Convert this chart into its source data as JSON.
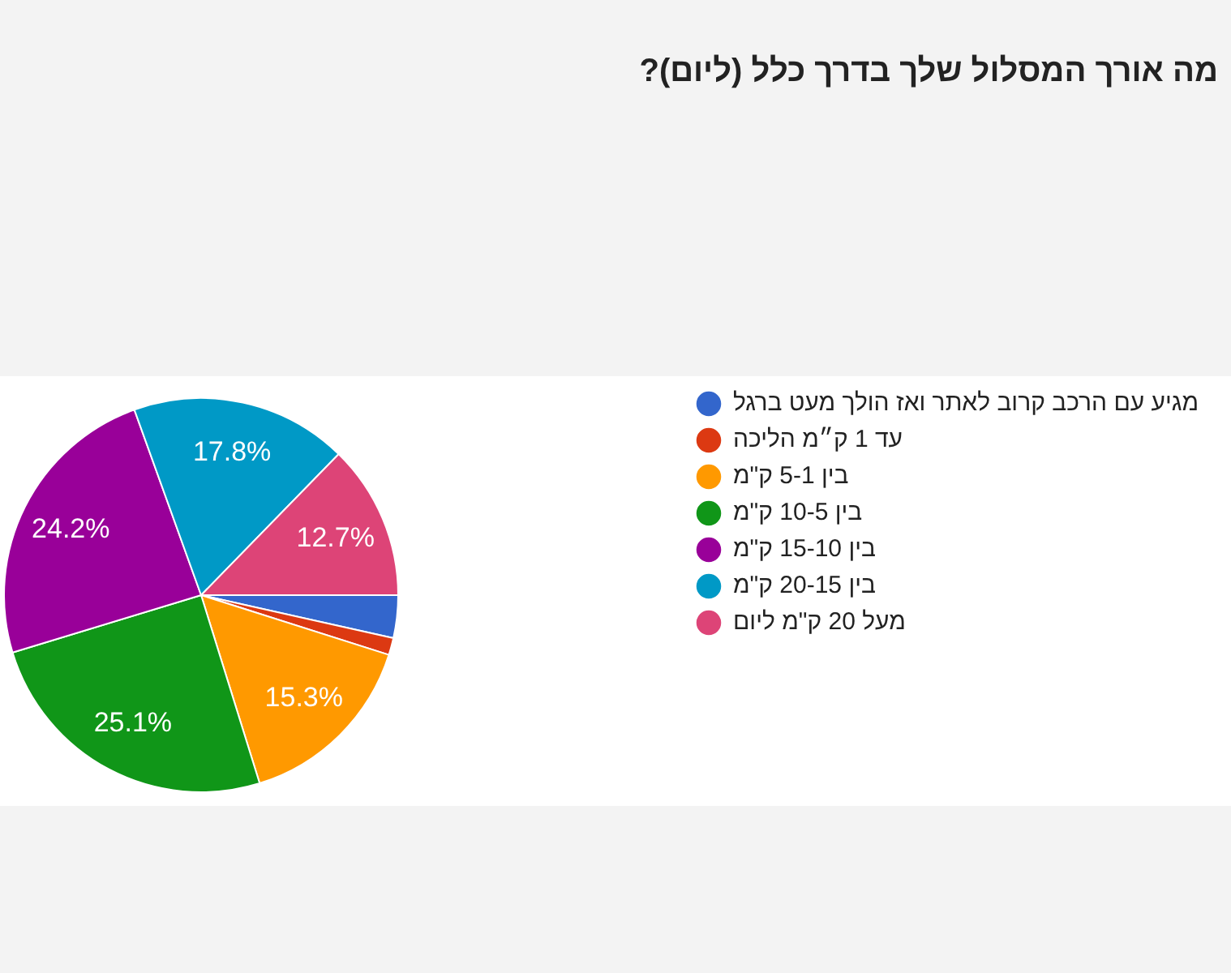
{
  "chart_data": {
    "type": "pie",
    "title": "מה אורך המסלול שלך בדרך כלל (ליום)?",
    "categories": [
      "מגיע עם הרכב קרוב לאתר ואז הולך מעט ברגל",
      "עד 1 ק״מ הליכה",
      "בין 5-1 ק\"מ",
      "בין 10-5 ק\"מ",
      "בין 15-10 ק\"מ",
      "בין 20-15 ק\"מ",
      "מעל 20 ק\"מ ליום"
    ],
    "values": [
      3.5,
      1.4,
      15.3,
      25.1,
      24.2,
      17.8,
      12.7
    ],
    "colors": [
      "#3366cc",
      "#dc3912",
      "#ff9900",
      "#109618",
      "#990099",
      "#0099c6",
      "#dd4477"
    ],
    "value_labels": [
      null,
      null,
      "15.3%",
      "25.1%",
      "24.2%",
      "17.8%",
      "12.7%"
    ],
    "legend": "right"
  }
}
